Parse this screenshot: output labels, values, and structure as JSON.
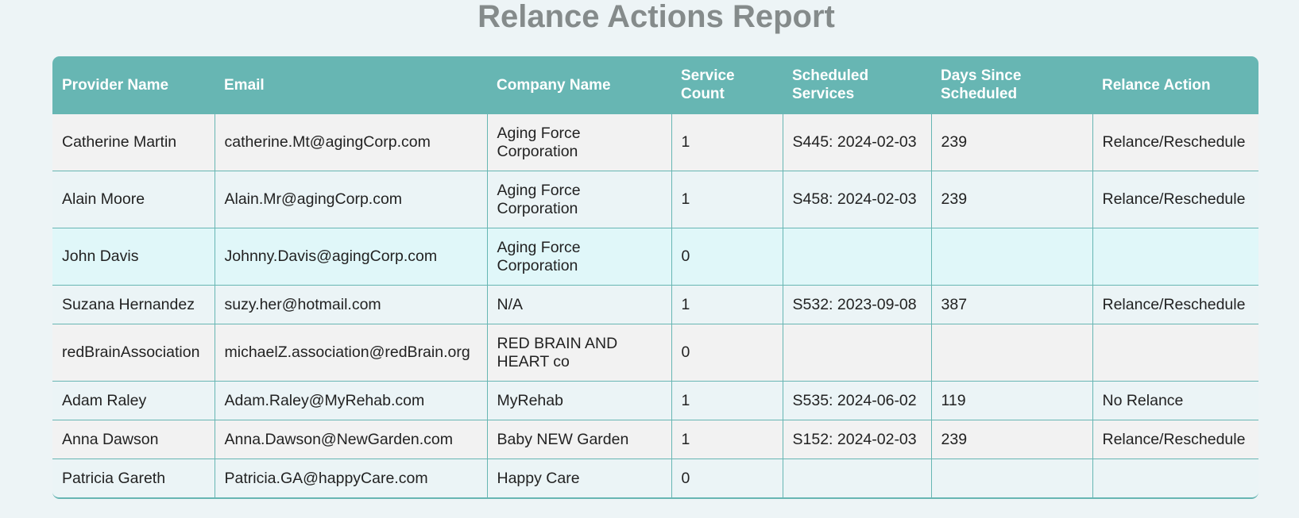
{
  "title": "Relance Actions Report",
  "columns": [
    "Provider Name",
    "Email",
    "Company Name",
    "Service Count",
    "Scheduled Services",
    "Days Since Scheduled",
    "Relance Action"
  ],
  "rows": [
    {
      "provider": "Catherine Martin",
      "email": "catherine.Mt@agingCorp.com",
      "company": "Aging Force Corporation",
      "count": "1",
      "scheduled": "S445: 2024-02-03",
      "days": "239",
      "action": "Relance/Reschedule"
    },
    {
      "provider": "Alain Moore",
      "email": "Alain.Mr@agingCorp.com",
      "company": "Aging Force Corporation",
      "count": "1",
      "scheduled": "S458: 2024-02-03",
      "days": "239",
      "action": "Relance/Reschedule"
    },
    {
      "provider": "John Davis",
      "email": "Johnny.Davis@agingCorp.com",
      "company": "Aging Force Corporation",
      "count": "0",
      "scheduled": "",
      "days": "",
      "action": ""
    },
    {
      "provider": "Suzana Hernandez",
      "email": "suzy.her@hotmail.com",
      "company": "N/A",
      "count": "1",
      "scheduled": "S532: 2023-09-08",
      "days": "387",
      "action": "Relance/Reschedule"
    },
    {
      "provider": "redBrainAssociation",
      "email": "michaelZ.association@redBrain.org",
      "company": "RED BRAIN AND HEART co",
      "count": "0",
      "scheduled": "",
      "days": "",
      "action": ""
    },
    {
      "provider": "Adam Raley",
      "email": "Adam.Raley@MyRehab.com",
      "company": "MyRehab",
      "count": "1",
      "scheduled": "S535: 2024-06-02",
      "days": "119",
      "action": "No Relance"
    },
    {
      "provider": "Anna Dawson",
      "email": "Anna.Dawson@NewGarden.com",
      "company": "Baby NEW Garden",
      "count": "1",
      "scheduled": "S152: 2024-02-03",
      "days": "239",
      "action": "Relance/Reschedule"
    },
    {
      "provider": "Patricia Gareth",
      "email": "Patricia.GA@happyCare.com",
      "company": "Happy Care",
      "count": "0",
      "scheduled": "",
      "days": "",
      "action": ""
    }
  ]
}
